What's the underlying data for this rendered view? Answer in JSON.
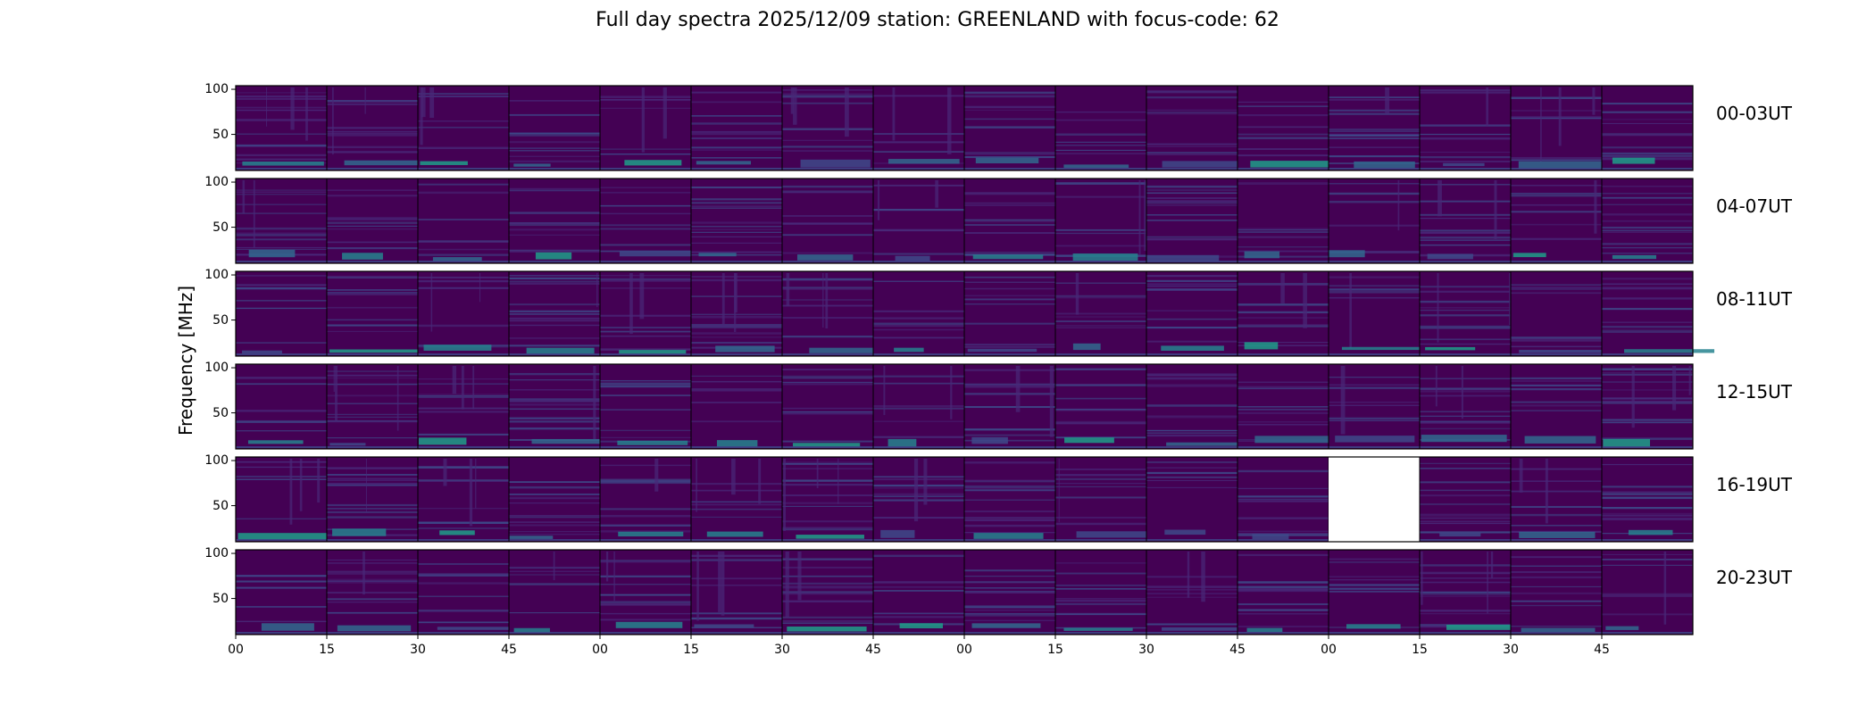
{
  "chart_data": {
    "type": "heatmap",
    "title": "Full day spectra 2025/12/09 station: GREENLAND with focus-code: 62",
    "ylabel": "Frequency [MHz]",
    "xlabel": "",
    "ylim": [
      10,
      104
    ],
    "yticks": [
      "100",
      "50"
    ],
    "xticks": [
      "00",
      "15",
      "30",
      "45",
      "00",
      "15",
      "30",
      "45",
      "00",
      "15",
      "30",
      "45",
      "00",
      "15",
      "30",
      "45"
    ],
    "panels_per_row": 16,
    "panel_minutes": 15,
    "colormap": [
      "#440154",
      "#482878",
      "#3e4989",
      "#31688e",
      "#26828e",
      "#1f9e89",
      "#35b779",
      "#6ece58"
    ],
    "rows": [
      {
        "label": "00-03UT",
        "missing_panels": []
      },
      {
        "label": "04-07UT",
        "missing_panels": []
      },
      {
        "label": "08-11UT",
        "missing_panels": []
      },
      {
        "label": "12-15UT",
        "missing_panels": []
      },
      {
        "label": "16-19UT",
        "missing_panels": [
          12
        ]
      },
      {
        "label": "20-23UT",
        "missing_panels": []
      }
    ]
  }
}
